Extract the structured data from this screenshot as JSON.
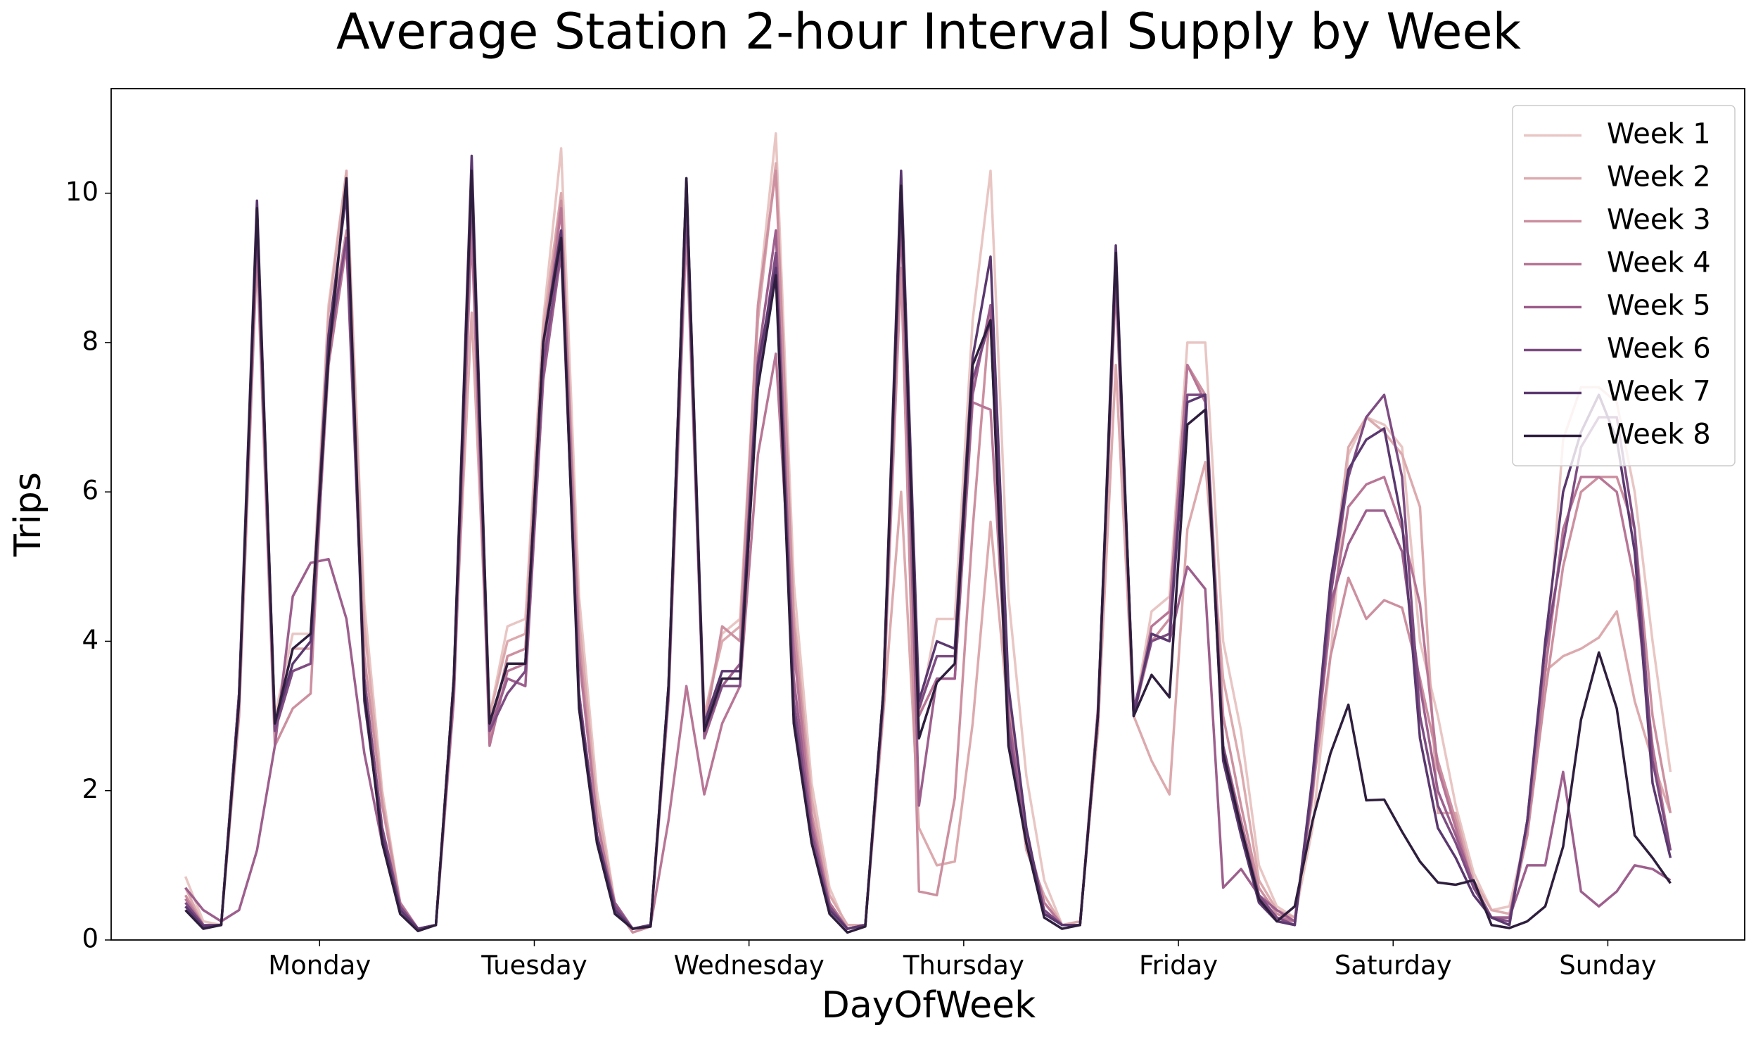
{
  "chart_data": {
    "type": "line",
    "title": "Average Station 2-hour Interval Supply by Week",
    "xlabel": "DayOfWeek",
    "ylabel": "Trips",
    "x": [
      0,
      1,
      2,
      3,
      4,
      5,
      6,
      7,
      8,
      9,
      10,
      11,
      12,
      13,
      14,
      15,
      16,
      17,
      18,
      19,
      20,
      21,
      22,
      23,
      24,
      25,
      26,
      27,
      28,
      29,
      30,
      31,
      32,
      33,
      34,
      35,
      36,
      37,
      38,
      39,
      40,
      41,
      42,
      43,
      44,
      45,
      46,
      47,
      48,
      49,
      50,
      51,
      52,
      53,
      54,
      55,
      56,
      57,
      58,
      59,
      60,
      61,
      62,
      63,
      64,
      65,
      66,
      67,
      68,
      69,
      70,
      71,
      72,
      73,
      74,
      75,
      76,
      77,
      78,
      79,
      80,
      81,
      82,
      83
    ],
    "xlim": [
      -4.15,
      87.15
    ],
    "xticks": [
      {
        "value": 7.5,
        "label": "Monday"
      },
      {
        "value": 19.5,
        "label": "Tuesday"
      },
      {
        "value": 31.5,
        "label": "Wednesday"
      },
      {
        "value": 43.5,
        "label": "Thursday"
      },
      {
        "value": 55.5,
        "label": "Friday"
      },
      {
        "value": 67.5,
        "label": "Saturday"
      },
      {
        "value": 79.5,
        "label": "Sunday"
      }
    ],
    "ylim": [
      0,
      11.4
    ],
    "yticks": [
      0,
      2,
      4,
      6,
      8,
      10
    ],
    "legend": "upper right",
    "series": [
      {
        "name": "Week 1",
        "color": "#e8c6c4",
        "values": [
          0.85,
          0.25,
          0.2,
          3.2,
          9.6,
          3.0,
          4.1,
          4.1,
          8.5,
          10.3,
          4.5,
          2.0,
          0.5,
          0.12,
          0.2,
          3.5,
          10.2,
          3.0,
          4.2,
          4.3,
          8.3,
          10.6,
          4.6,
          2.0,
          0.5,
          0.15,
          0.2,
          3.4,
          9.8,
          3.0,
          4.1,
          4.3,
          8.5,
          10.8,
          4.8,
          2.1,
          0.7,
          0.15,
          0.2,
          3.3,
          9.8,
          3.0,
          4.3,
          4.3,
          8.3,
          10.3,
          4.6,
          2.2,
          0.8,
          0.2,
          0.2,
          3.0,
          8.8,
          3.0,
          4.4,
          4.6,
          8.0,
          8.0,
          4.0,
          2.8,
          1.0,
          0.45,
          0.3,
          1.5,
          3.8,
          6.5,
          7.0,
          6.9,
          6.6,
          4.0,
          3.0,
          1.8,
          0.9,
          0.4,
          0.45,
          1.5,
          3.5,
          6.7,
          7.4,
          7.4,
          7.2,
          6.0,
          4.0,
          2.25
        ]
      },
      {
        "name": "Week 2",
        "color": "#dcaaae",
        "values": [
          0.7,
          0.2,
          0.2,
          3.2,
          9.5,
          2.9,
          3.9,
          3.9,
          8.4,
          10.3,
          4.2,
          1.9,
          0.5,
          0.15,
          0.2,
          3.5,
          8.4,
          3.0,
          4.0,
          4.1,
          8.2,
          10.0,
          4.3,
          1.8,
          0.5,
          0.15,
          0.2,
          3.3,
          9.6,
          3.0,
          4.0,
          4.2,
          8.3,
          10.4,
          4.4,
          1.9,
          0.6,
          0.2,
          0.2,
          3.0,
          6.0,
          1.5,
          1.0,
          1.05,
          2.9,
          5.6,
          3.0,
          1.2,
          0.6,
          0.2,
          0.25,
          2.8,
          7.7,
          3.0,
          2.4,
          1.95,
          5.5,
          6.4,
          3.5,
          2.3,
          0.8,
          0.4,
          0.3,
          1.9,
          4.6,
          6.6,
          7.0,
          6.8,
          6.5,
          5.8,
          1.7,
          1.7,
          0.8,
          0.4,
          0.35,
          1.4,
          3.6,
          3.8,
          3.9,
          4.05,
          4.4,
          3.2,
          2.4,
          1.7
        ]
      },
      {
        "name": "Week 3",
        "color": "#cc90a0",
        "values": [
          0.6,
          0.2,
          0.2,
          3.0,
          9.2,
          2.6,
          3.1,
          3.3,
          8.0,
          9.5,
          3.8,
          1.8,
          0.5,
          0.15,
          0.2,
          3.3,
          9.8,
          2.7,
          3.8,
          3.9,
          8.0,
          9.9,
          4.0,
          1.6,
          0.45,
          0.1,
          0.18,
          3.2,
          9.5,
          2.8,
          4.2,
          4.0,
          8.5,
          10.3,
          4.2,
          1.7,
          0.5,
          0.15,
          0.2,
          3.1,
          9.0,
          0.65,
          0.6,
          1.9,
          5.5,
          8.5,
          3.2,
          1.3,
          0.5,
          0.2,
          0.2,
          2.9,
          9.0,
          3.0,
          4.0,
          4.3,
          7.7,
          7.3,
          3.0,
          1.8,
          0.7,
          0.35,
          0.25,
          2.0,
          3.8,
          4.85,
          4.3,
          4.55,
          4.45,
          3.5,
          2.4,
          1.6,
          0.7,
          0.3,
          0.3,
          1.4,
          3.3,
          5.0,
          6.0,
          6.2,
          6.2,
          5.5,
          3.0,
          1.7
        ]
      },
      {
        "name": "Week 4",
        "color": "#b87696",
        "values": [
          0.55,
          0.2,
          0.2,
          3.3,
          9.4,
          2.8,
          3.6,
          3.7,
          7.7,
          9.3,
          3.5,
          1.5,
          0.5,
          0.15,
          0.2,
          3.2,
          9.5,
          2.6,
          3.6,
          3.7,
          7.8,
          9.8,
          3.8,
          1.6,
          0.45,
          0.15,
          0.2,
          1.6,
          3.4,
          1.95,
          2.9,
          3.4,
          6.5,
          7.85,
          3.9,
          1.6,
          0.5,
          0.15,
          0.2,
          3.2,
          9.6,
          3.0,
          3.5,
          3.5,
          7.2,
          7.1,
          3.0,
          1.4,
          0.5,
          0.2,
          0.2,
          3.1,
          8.8,
          3.0,
          4.2,
          4.4,
          7.7,
          7.2,
          2.6,
          1.6,
          0.6,
          0.3,
          0.25,
          2.1,
          4.3,
          5.8,
          6.1,
          6.2,
          5.5,
          4.5,
          2.3,
          1.5,
          0.7,
          0.3,
          0.3,
          1.5,
          3.6,
          5.5,
          6.2,
          6.2,
          6.0,
          4.8,
          2.6,
          1.2
        ]
      },
      {
        "name": "Week 5",
        "color": "#9d5f8d",
        "values": [
          0.7,
          0.4,
          0.25,
          0.4,
          1.2,
          2.6,
          4.6,
          5.05,
          5.1,
          4.3,
          2.5,
          1.3,
          0.45,
          0.15,
          0.2,
          3.4,
          10.0,
          2.8,
          3.5,
          3.4,
          7.5,
          9.2,
          3.3,
          1.4,
          0.5,
          0.15,
          0.2,
          3.3,
          9.8,
          2.7,
          3.4,
          3.7,
          7.8,
          9.5,
          3.5,
          1.5,
          0.45,
          0.15,
          0.2,
          3.2,
          9.8,
          1.8,
          3.5,
          3.5,
          7.3,
          8.5,
          3.0,
          1.3,
          0.4,
          0.2,
          0.2,
          3.0,
          9.1,
          3.0,
          4.1,
          4.0,
          5.0,
          4.7,
          0.7,
          0.95,
          0.6,
          0.4,
          0.25,
          2.0,
          4.5,
          5.3,
          5.75,
          5.75,
          5.2,
          3.4,
          2.0,
          1.4,
          0.75,
          0.3,
          0.3,
          1.0,
          1.0,
          2.25,
          0.65,
          0.45,
          0.65,
          1.0,
          0.95,
          0.8
        ]
      },
      {
        "name": "Week 6",
        "color": "#7e4c82",
        "values": [
          0.5,
          0.2,
          0.2,
          3.3,
          9.6,
          2.8,
          3.6,
          3.7,
          7.9,
          9.4,
          3.5,
          1.5,
          0.45,
          0.15,
          0.2,
          3.4,
          10.1,
          2.8,
          3.3,
          3.6,
          7.7,
          9.3,
          3.3,
          1.4,
          0.45,
          0.15,
          0.2,
          3.3,
          9.9,
          2.8,
          3.4,
          3.4,
          7.5,
          9.2,
          3.2,
          1.4,
          0.45,
          0.15,
          0.2,
          3.2,
          10.0,
          3.1,
          3.8,
          3.8,
          7.5,
          8.3,
          2.8,
          1.3,
          0.4,
          0.2,
          0.2,
          3.0,
          9.0,
          3.1,
          4.0,
          4.1,
          7.3,
          7.3,
          2.6,
          1.5,
          0.6,
          0.3,
          0.2,
          2.1,
          4.6,
          6.2,
          7.0,
          7.3,
          6.2,
          3.0,
          1.8,
          1.3,
          0.7,
          0.3,
          0.25,
          1.6,
          3.9,
          5.3,
          6.6,
          7.0,
          7.0,
          5.5,
          2.4,
          1.2
        ]
      },
      {
        "name": "Week 7",
        "color": "#5b386f",
        "values": [
          0.45,
          0.18,
          0.2,
          3.3,
          9.9,
          2.9,
          3.7,
          4.0,
          8.1,
          10.0,
          3.2,
          1.4,
          0.4,
          0.15,
          0.2,
          3.5,
          10.5,
          2.9,
          3.7,
          3.7,
          8.0,
          9.5,
          3.2,
          1.4,
          0.4,
          0.15,
          0.2,
          3.4,
          10.2,
          2.9,
          3.6,
          3.6,
          7.7,
          9.0,
          3.0,
          1.3,
          0.4,
          0.15,
          0.2,
          3.3,
          10.3,
          3.2,
          4.0,
          3.9,
          7.8,
          9.15,
          3.4,
          1.5,
          0.35,
          0.2,
          0.2,
          3.0,
          9.3,
          3.0,
          4.1,
          4.0,
          7.2,
          7.3,
          2.4,
          1.4,
          0.5,
          0.25,
          0.2,
          2.2,
          4.8,
          6.3,
          6.7,
          6.85,
          5.6,
          2.7,
          1.5,
          1.1,
          0.6,
          0.3,
          0.2,
          1.6,
          4.0,
          6.0,
          6.8,
          7.3,
          6.7,
          5.2,
          2.1,
          1.1
        ]
      },
      {
        "name": "Week 8",
        "color": "#2e1e3d",
        "values": [
          0.4,
          0.15,
          0.2,
          3.2,
          9.8,
          2.9,
          3.9,
          4.1,
          7.8,
          10.2,
          3.3,
          1.3,
          0.35,
          0.12,
          0.2,
          3.5,
          10.3,
          2.9,
          3.7,
          3.7,
          8.0,
          9.4,
          3.1,
          1.3,
          0.35,
          0.15,
          0.18,
          3.4,
          10.2,
          2.8,
          3.5,
          3.5,
          7.4,
          8.9,
          2.9,
          1.3,
          0.35,
          0.1,
          0.18,
          3.3,
          10.1,
          2.7,
          3.45,
          3.7,
          7.7,
          8.3,
          2.6,
          1.3,
          0.3,
          0.15,
          0.2,
          3.0,
          9.2,
          3.0,
          3.55,
          3.25,
          6.9,
          7.1,
          2.5,
          1.5,
          0.55,
          0.25,
          0.45,
          1.6,
          2.5,
          3.15,
          1.87,
          1.88,
          1.45,
          1.05,
          0.77,
          0.74,
          0.8,
          0.2,
          0.16,
          0.25,
          0.45,
          1.25,
          2.95,
          3.85,
          3.1,
          1.4,
          1.1,
          0.76
        ]
      }
    ]
  }
}
